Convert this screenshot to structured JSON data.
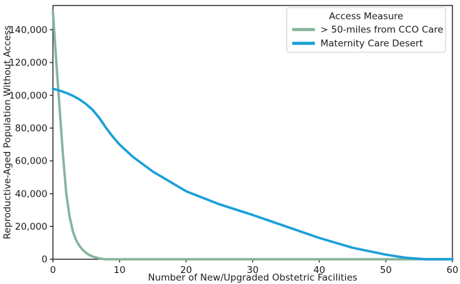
{
  "chart_data": {
    "type": "line",
    "title": "",
    "xlabel": "Number of New/Upgraded Obstetric Facilities",
    "ylabel": "Reproductive-Aged Population Without Access",
    "xlim": [
      0,
      60
    ],
    "ylim": [
      0,
      154800
    ],
    "x_ticks": [
      0,
      10,
      20,
      30,
      40,
      50,
      60
    ],
    "x_tick_labels": [
      "0",
      "10",
      "20",
      "30",
      "40",
      "50",
      "60"
    ],
    "y_ticks": [
      0,
      20000,
      40000,
      60000,
      80000,
      100000,
      120000,
      140000
    ],
    "y_tick_labels": [
      "0",
      "20,000",
      "40,000",
      "60,000",
      "80,000",
      "100,000",
      "120,000",
      "140,000"
    ],
    "grid": false,
    "legend": {
      "title": "Access Measure",
      "position": "upper right"
    },
    "series": [
      {
        "name": "> 50-miles from CCO Care",
        "color": "#86b49b",
        "x": [
          0,
          0.5,
          1,
          1.5,
          2,
          2.5,
          3,
          3.5,
          4,
          4.5,
          5,
          5.5,
          6,
          6.5,
          7,
          7.5,
          8,
          10,
          20,
          30,
          40,
          50,
          60
        ],
        "y": [
          151000,
          121000,
          92000,
          64000,
          40000,
          26000,
          17000,
          11500,
          8000,
          5600,
          3800,
          2500,
          1600,
          1000,
          500,
          200,
          0,
          0,
          0,
          0,
          0,
          0,
          0
        ]
      },
      {
        "name": "Maternity Care Desert",
        "color": "#1aa0d7",
        "x": [
          0,
          1,
          2,
          3,
          4,
          5,
          6,
          7,
          8,
          9,
          10,
          12,
          15,
          20,
          25,
          30,
          35,
          40,
          45,
          50,
          53,
          56,
          60
        ],
        "y": [
          104000,
          102900,
          101500,
          99700,
          97500,
          94600,
          91000,
          86000,
          80000,
          74700,
          70000,
          62500,
          53500,
          41500,
          33500,
          27000,
          20000,
          13000,
          7000,
          2800,
          900,
          0,
          0
        ]
      }
    ]
  },
  "style": {
    "axis_color": "#262626",
    "legend_border_color": "#cccccc",
    "background_color": "#ffffff",
    "line_width": 3.5
  }
}
